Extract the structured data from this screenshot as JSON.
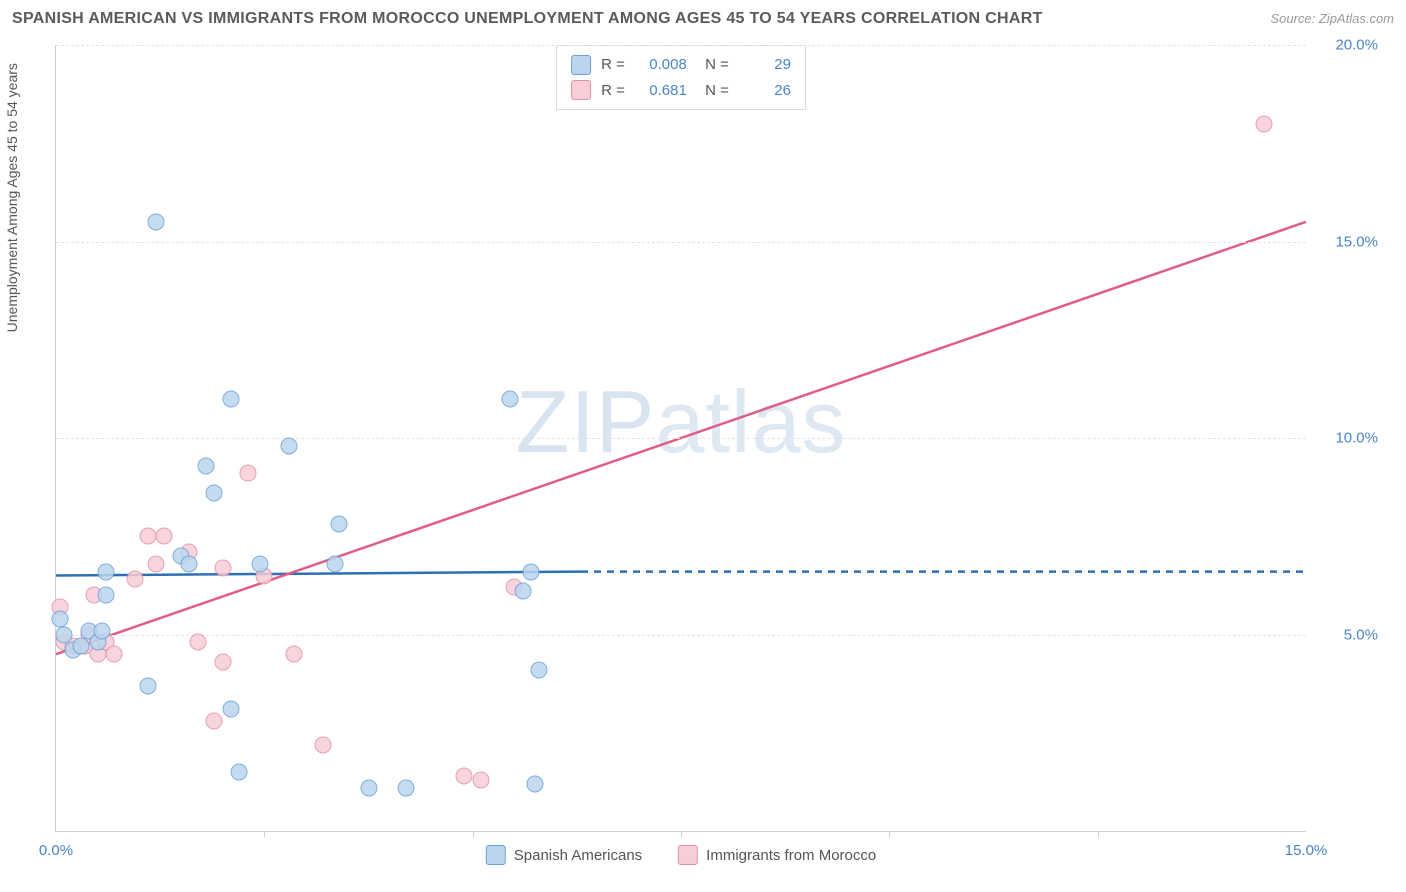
{
  "title": "SPANISH AMERICAN VS IMMIGRANTS FROM MOROCCO UNEMPLOYMENT AMONG AGES 45 TO 54 YEARS CORRELATION CHART",
  "source": "Source: ZipAtlas.com",
  "watermark_a": "ZIP",
  "watermark_b": "atlas",
  "yaxis_label": "Unemployment Among Ages 45 to 54 years",
  "xlim": [
    0,
    15
  ],
  "ylim": [
    0,
    20
  ],
  "yticks": [
    {
      "v": 5,
      "label": "5.0%"
    },
    {
      "v": 10,
      "label": "10.0%"
    },
    {
      "v": 15,
      "label": "15.0%"
    },
    {
      "v": 20,
      "label": "20.0%"
    }
  ],
  "xticks": [
    {
      "v": 0,
      "label": "0.0%"
    },
    {
      "v": 15,
      "label": "15.0%"
    }
  ],
  "xtick_marks": [
    2.5,
    5,
    7.5,
    10,
    12.5
  ],
  "grid_color": "#e5e5e5",
  "axis_color": "#cfcfcf",
  "background": "#ffffff",
  "tick_label_color": "#4a86c7",
  "series": {
    "a": {
      "name": "Spanish Americans",
      "fill": "#bcd5ee",
      "stroke": "#6aa0d8",
      "trend_color": "#2f6fb3",
      "r_value": "0.008",
      "n_value": "29",
      "marker_radius": 8.5,
      "trend": {
        "x1": 0,
        "y1": 6.5,
        "x2": 6.3,
        "y2": 6.6,
        "dash_from_x": 6.3,
        "dash_to_x": 15,
        "dash_y": 6.6
      },
      "points": [
        {
          "x": 0.05,
          "y": 5.4
        },
        {
          "x": 0.1,
          "y": 5.0
        },
        {
          "x": 0.2,
          "y": 4.6
        },
        {
          "x": 0.3,
          "y": 4.7
        },
        {
          "x": 0.4,
          "y": 5.1
        },
        {
          "x": 0.5,
          "y": 4.8
        },
        {
          "x": 0.55,
          "y": 5.1
        },
        {
          "x": 0.6,
          "y": 6.0
        },
        {
          "x": 0.6,
          "y": 6.6
        },
        {
          "x": 1.1,
          "y": 3.7
        },
        {
          "x": 1.2,
          "y": 15.5
        },
        {
          "x": 1.5,
          "y": 7.0
        },
        {
          "x": 1.6,
          "y": 6.8
        },
        {
          "x": 1.8,
          "y": 9.3
        },
        {
          "x": 1.9,
          "y": 8.6
        },
        {
          "x": 2.1,
          "y": 3.1
        },
        {
          "x": 2.1,
          "y": 11.0
        },
        {
          "x": 2.2,
          "y": 1.5
        },
        {
          "x": 2.45,
          "y": 6.8
        },
        {
          "x": 2.8,
          "y": 9.8
        },
        {
          "x": 3.35,
          "y": 6.8
        },
        {
          "x": 3.4,
          "y": 7.8
        },
        {
          "x": 3.75,
          "y": 1.1
        },
        {
          "x": 4.2,
          "y": 1.1
        },
        {
          "x": 5.45,
          "y": 11.0
        },
        {
          "x": 5.6,
          "y": 6.1
        },
        {
          "x": 5.7,
          "y": 6.6
        },
        {
          "x": 5.75,
          "y": 1.2
        },
        {
          "x": 5.8,
          "y": 4.1
        }
      ]
    },
    "b": {
      "name": "Immigrants from Morocco",
      "fill": "#f7cdd8",
      "stroke": "#e290a7",
      "trend_color": "#e05e86",
      "r_value": "0.681",
      "n_value": "26",
      "marker_radius": 8.5,
      "trend": {
        "x1": 0,
        "y1": 4.5,
        "x2": 15,
        "y2": 15.5
      },
      "points": [
        {
          "x": 0.05,
          "y": 5.7
        },
        {
          "x": 0.1,
          "y": 4.8
        },
        {
          "x": 0.2,
          "y": 4.7
        },
        {
          "x": 0.35,
          "y": 4.7
        },
        {
          "x": 0.4,
          "y": 5.0
        },
        {
          "x": 0.45,
          "y": 6.0
        },
        {
          "x": 0.5,
          "y": 4.5
        },
        {
          "x": 0.6,
          "y": 4.8
        },
        {
          "x": 0.7,
          "y": 4.5
        },
        {
          "x": 0.95,
          "y": 6.4
        },
        {
          "x": 1.1,
          "y": 7.5
        },
        {
          "x": 1.2,
          "y": 6.8
        },
        {
          "x": 1.3,
          "y": 7.5
        },
        {
          "x": 1.6,
          "y": 7.1
        },
        {
          "x": 1.7,
          "y": 4.8
        },
        {
          "x": 1.9,
          "y": 2.8
        },
        {
          "x": 2.0,
          "y": 4.3
        },
        {
          "x": 2.0,
          "y": 6.7
        },
        {
          "x": 2.3,
          "y": 9.1
        },
        {
          "x": 2.5,
          "y": 6.5
        },
        {
          "x": 2.85,
          "y": 4.5
        },
        {
          "x": 3.2,
          "y": 2.2
        },
        {
          "x": 4.9,
          "y": 1.4
        },
        {
          "x": 5.1,
          "y": 1.3
        },
        {
          "x": 5.5,
          "y": 6.2
        },
        {
          "x": 14.5,
          "y": 18.0
        }
      ]
    }
  },
  "legend_top_rows": [
    {
      "swatch": "a",
      "r": "0.008",
      "n": "29"
    },
    {
      "swatch": "b",
      "r": "0.681",
      "n": "26"
    }
  ]
}
